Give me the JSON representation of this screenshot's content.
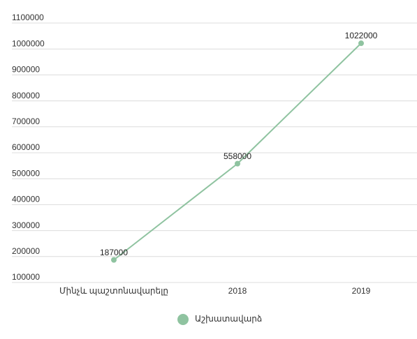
{
  "chart_data": {
    "type": "line",
    "categories": [
      "Մինչև պաշտոնավարելը",
      "2018",
      "2019"
    ],
    "series": [
      {
        "name": "Աշխատավարձ",
        "color": "#8fc3a0",
        "values": [
          187000,
          558000,
          1022000
        ]
      }
    ],
    "ylim": [
      100000,
      1100000
    ],
    "yticks": [
      100000,
      200000,
      300000,
      400000,
      500000,
      600000,
      700000,
      800000,
      900000,
      1000000,
      1100000
    ],
    "grid": true,
    "legend": "bottom"
  }
}
